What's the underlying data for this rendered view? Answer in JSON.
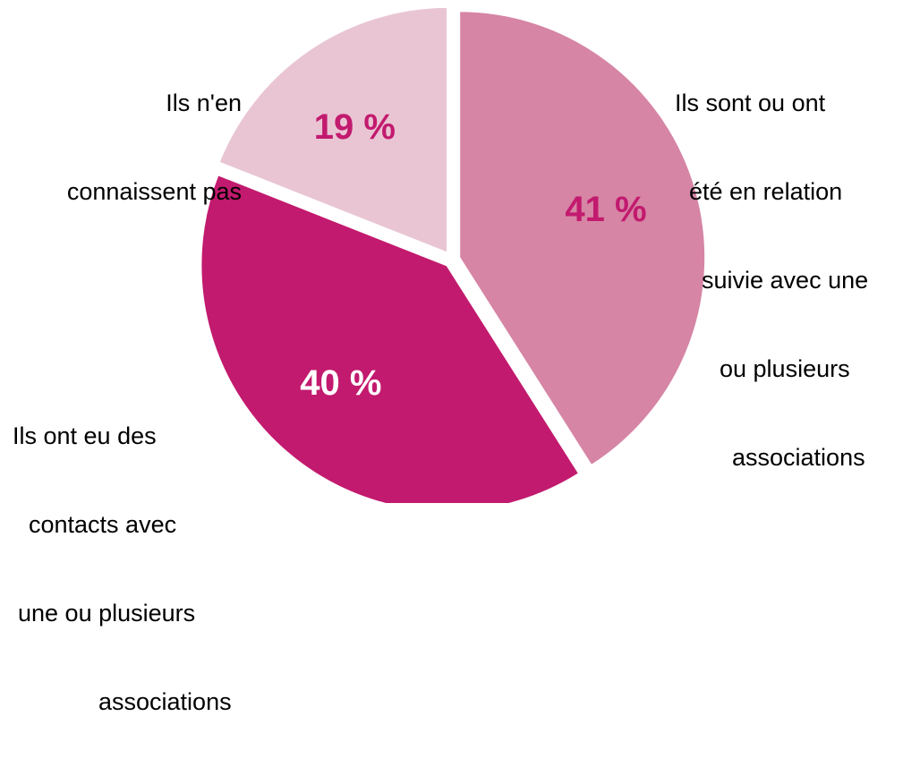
{
  "chart_data": {
    "type": "pie",
    "title": "",
    "slices": [
      {
        "label_lines": [
          "Ils sont ou ont",
          "été en relation",
          "suivie avec une",
          "ou plusieurs",
          "associations"
        ],
        "value": 41,
        "value_label": "41 %",
        "color": "#D685A5",
        "value_label_color": "#C21A6E"
      },
      {
        "label_lines": [
          "Ils ont eu des",
          "contacts avec",
          "une ou plusieurs",
          "associations"
        ],
        "value": 40,
        "value_label": "40 %",
        "color": "#C21A6E",
        "value_label_color": "#FFFFFF"
      },
      {
        "label_lines": [
          "Ils n'en",
          "connaissent pas"
        ],
        "value": 19,
        "value_label": "19 %",
        "color": "#E9C5D4",
        "value_label_color": "#C21A6E"
      }
    ],
    "legend": "none",
    "start_angle_deg": 0,
    "direction": "clockwise",
    "exploded": true
  }
}
